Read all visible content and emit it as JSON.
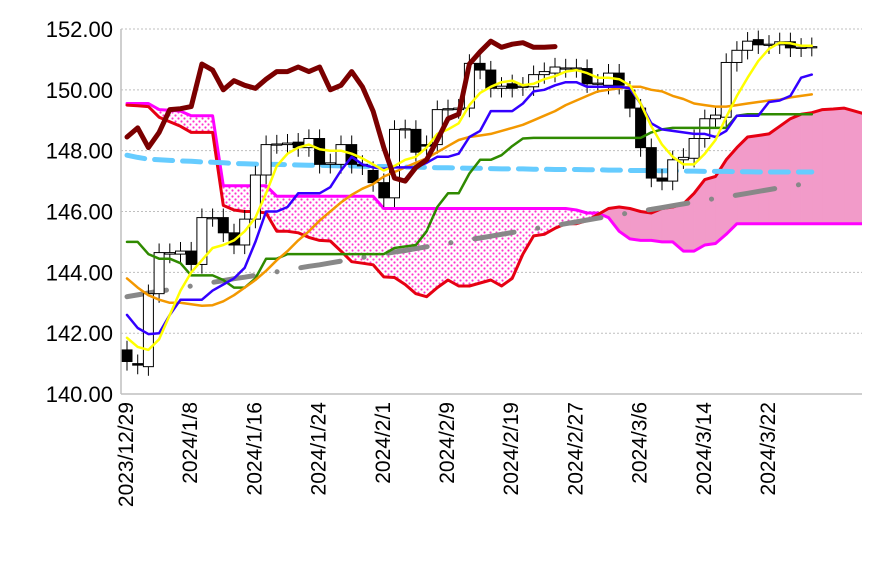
{
  "chart_data": {
    "type": "line",
    "subtype": "ichimoku-candlestick",
    "title": "",
    "xlabel": "",
    "ylabel": "",
    "ylim": [
      140,
      152
    ],
    "yticks": [
      "152.00",
      "150.00",
      "148.00",
      "146.00",
      "144.00",
      "142.00",
      "140.00"
    ],
    "ytick_values": [
      152,
      150,
      148,
      146,
      144,
      142,
      140
    ],
    "xticks": [
      {
        "label": "2023/12/29",
        "index": 0
      },
      {
        "label": "2024/1/8",
        "index": 6
      },
      {
        "label": "2024/1/16",
        "index": 12
      },
      {
        "label": "2024/1/24",
        "index": 18
      },
      {
        "label": "2024/2/1",
        "index": 24
      },
      {
        "label": "2024/2/9",
        "index": 30
      },
      {
        "label": "2024/2/19",
        "index": 36
      },
      {
        "label": "2024/2/27",
        "index": 42
      },
      {
        "label": "2024/3/6",
        "index": 48
      },
      {
        "label": "2024/3/14",
        "index": 54
      },
      {
        "label": "2024/3/22",
        "index": 60
      }
    ],
    "x_range": [
      -0.5,
      68.7
    ],
    "grid": true,
    "candles": {
      "open": [
        141.45,
        141.0,
        140.9,
        143.3,
        144.6,
        144.6,
        144.7,
        144.26,
        145.8,
        145.8,
        145.3,
        144.9,
        145.75,
        147.2,
        148.2,
        148.2,
        148.28,
        148.1,
        148.4,
        147.55,
        147.55,
        148.2,
        147.55,
        147.35,
        146.95,
        146.45,
        148.7,
        148.7,
        148.2,
        148.2,
        149.35,
        149.35,
        149.4,
        150.87,
        150.65,
        150.05,
        150.2,
        150.1,
        150.1,
        150.5,
        150.55,
        150.7,
        150.7,
        150.7,
        150.2,
        150.15,
        150.55,
        149.99,
        149.4,
        148.1,
        147.1,
        147.0,
        147.7,
        147.75,
        148.4,
        149.05,
        149.1,
        150.9,
        151.3,
        151.65,
        151.48,
        151.48,
        151.58,
        151.38,
        151.4
      ],
      "close": [
        141.07,
        140.95,
        143.3,
        144.65,
        144.65,
        144.7,
        144.26,
        145.8,
        145.8,
        145.3,
        144.9,
        145.75,
        147.2,
        148.2,
        148.22,
        148.25,
        148.1,
        148.4,
        147.55,
        147.6,
        148.2,
        147.55,
        147.5,
        146.95,
        146.45,
        148.7,
        148.72,
        147.95,
        148.15,
        149.35,
        149.38,
        149.4,
        150.87,
        150.65,
        150.05,
        150.12,
        150.05,
        150.12,
        150.5,
        150.6,
        150.75,
        150.72,
        150.72,
        150.2,
        150.22,
        150.55,
        150.15,
        149.4,
        148.1,
        147.1,
        147.0,
        147.7,
        147.78,
        148.4,
        149.05,
        149.17,
        150.9,
        151.3,
        151.6,
        151.48,
        151.5,
        151.58,
        151.38,
        151.4,
        151.42
      ],
      "wick_extension": 0.3,
      "up_color": "#ffffff",
      "down_color": "#000000"
    },
    "series": [
      {
        "name": "senkou-span-b",
        "color": "#ff00ff",
        "width": 3,
        "values": [
          149.55,
          149.55,
          149.55,
          149.35,
          149.33,
          149.3,
          149.15,
          149.15,
          149.15,
          146.85,
          146.85,
          146.85,
          146.85,
          146.85,
          146.5,
          146.5,
          146.5,
          146.5,
          146.5,
          146.5,
          146.5,
          146.5,
          146.5,
          146.5,
          146.1,
          146.1,
          146.1,
          146.1,
          146.1,
          146.1,
          146.1,
          146.1,
          146.1,
          146.1,
          146.1,
          146.1,
          146.1,
          146.1,
          146.1,
          146.1,
          146.1,
          146.1,
          146.05,
          145.95,
          145.95,
          145.8,
          145.35,
          145.1,
          145.05,
          145.05,
          145.0,
          145.0,
          144.7,
          144.7,
          144.9,
          144.95,
          145.25,
          145.6,
          145.6,
          145.6,
          145.6,
          145.6,
          145.6,
          145.6,
          145.6,
          145.6,
          145.6,
          145.6,
          145.6,
          145.6
        ]
      },
      {
        "name": "senkou-span-a",
        "color": "#e60012",
        "width": 3,
        "values": [
          149.5,
          149.48,
          149.45,
          149.1,
          148.95,
          148.8,
          148.6,
          148.6,
          148.6,
          146.2,
          146.05,
          146.0,
          146.0,
          145.95,
          145.35,
          145.35,
          145.3,
          145.15,
          145.05,
          145.03,
          144.7,
          144.35,
          144.3,
          144.25,
          143.85,
          143.83,
          143.6,
          143.3,
          143.2,
          143.5,
          143.75,
          143.55,
          143.55,
          143.65,
          143.75,
          143.55,
          143.8,
          144.6,
          145.2,
          145.25,
          145.45,
          145.6,
          145.6,
          145.7,
          145.9,
          146.1,
          146.15,
          146.1,
          146.0,
          145.95,
          146.1,
          146.15,
          146.25,
          146.6,
          147.05,
          147.15,
          147.7,
          148.1,
          148.45,
          148.5,
          148.55,
          148.8,
          149.05,
          149.2,
          149.25,
          149.35,
          149.37,
          149.4,
          149.3,
          149.2
        ]
      },
      {
        "name": "long-ma-lightblue",
        "color": "#66ccff",
        "width": 5,
        "dash": "dashed",
        "values": [
          147.85,
          147.78,
          147.72,
          147.7,
          147.68,
          147.66,
          147.65,
          147.63,
          147.62,
          147.6,
          147.58,
          147.57,
          147.56,
          147.55,
          147.55,
          147.54,
          147.53,
          147.52,
          147.52,
          147.51,
          147.5,
          147.5,
          147.49,
          147.48,
          147.48,
          147.47,
          147.46,
          147.46,
          147.45,
          147.44,
          147.44,
          147.43,
          147.42,
          147.42,
          147.41,
          147.4,
          147.4,
          147.4,
          147.39,
          147.39,
          147.38,
          147.38,
          147.38,
          147.37,
          147.37,
          147.36,
          147.36,
          147.35,
          147.35,
          147.35,
          147.34,
          147.34,
          147.33,
          147.33,
          147.32,
          147.32,
          147.32,
          147.31,
          147.31,
          147.3,
          147.3,
          147.3,
          147.3,
          147.3,
          147.3
        ]
      },
      {
        "name": "ma-gray",
        "color": "#888888",
        "width": 5,
        "dash": "dash-dot",
        "values": [
          143.2,
          143.26,
          143.32,
          143.38,
          143.43,
          143.49,
          143.55,
          143.61,
          143.67,
          143.73,
          143.79,
          143.84,
          143.9,
          143.96,
          144.02,
          144.08,
          144.14,
          144.2,
          144.25,
          144.31,
          144.37,
          144.43,
          144.49,
          144.55,
          144.61,
          144.67,
          144.72,
          144.78,
          144.84,
          144.9,
          144.96,
          145.02,
          145.08,
          145.13,
          145.19,
          145.25,
          145.31,
          145.37,
          145.43,
          145.49,
          145.54,
          145.6,
          145.66,
          145.72,
          145.78,
          145.84,
          145.9,
          145.96,
          146.02,
          146.07,
          146.13,
          146.19,
          146.25,
          146.31,
          146.37,
          146.43,
          146.48,
          146.54,
          146.6,
          146.66,
          146.72,
          146.78,
          146.84,
          146.89,
          146.95
        ]
      },
      {
        "name": "kijun-sen",
        "color": "#2f8a00",
        "width": 2.5,
        "values": [
          145.0,
          145.0,
          144.6,
          144.45,
          144.45,
          144.3,
          143.9,
          143.9,
          143.9,
          143.75,
          143.5,
          143.5,
          143.8,
          144.45,
          144.45,
          144.6,
          144.6,
          144.6,
          144.6,
          144.6,
          144.6,
          144.6,
          144.6,
          144.6,
          144.6,
          144.8,
          144.85,
          144.9,
          145.35,
          146.15,
          146.6,
          146.6,
          147.25,
          147.7,
          147.7,
          147.85,
          148.15,
          148.4,
          148.42,
          148.42,
          148.42,
          148.42,
          148.42,
          148.42,
          148.42,
          148.42,
          148.42,
          148.42,
          148.42,
          148.6,
          148.7,
          148.75,
          148.75,
          148.75,
          148.75,
          148.75,
          148.75,
          149.15,
          149.2,
          149.2,
          149.2,
          149.2,
          149.2,
          149.2,
          149.2
        ]
      },
      {
        "name": "ma-orange",
        "color": "#f39800",
        "width": 2.5,
        "values": [
          143.8,
          143.5,
          143.25,
          143.1,
          143.0,
          143.0,
          142.95,
          142.9,
          142.92,
          143.05,
          143.25,
          143.5,
          143.75,
          144.05,
          144.4,
          144.7,
          145.05,
          145.35,
          145.7,
          146.0,
          146.3,
          146.55,
          146.75,
          146.9,
          147.15,
          147.3,
          147.45,
          147.6,
          147.75,
          147.95,
          148.15,
          148.35,
          148.45,
          148.5,
          148.55,
          148.65,
          148.75,
          148.85,
          149.0,
          149.15,
          149.3,
          149.5,
          149.65,
          149.8,
          149.95,
          150.0,
          150.05,
          150.1,
          150.1,
          150.0,
          149.95,
          149.8,
          149.7,
          149.55,
          149.5,
          149.45,
          149.45,
          149.5,
          149.55,
          149.6,
          149.65,
          149.68,
          149.75,
          149.8,
          149.85
        ]
      },
      {
        "name": "tenkan-sen",
        "color": "#3300ff",
        "width": 2.5,
        "values": [
          142.6,
          142.17,
          141.97,
          142.0,
          142.6,
          143.1,
          143.1,
          143.1,
          143.4,
          143.6,
          143.8,
          144.15,
          145.0,
          146.0,
          146.0,
          146.15,
          146.6,
          146.6,
          146.6,
          146.8,
          147.35,
          147.8,
          147.55,
          147.45,
          147.4,
          147.45,
          147.45,
          147.45,
          147.6,
          147.8,
          147.8,
          147.9,
          148.45,
          148.65,
          149.3,
          149.3,
          149.3,
          149.55,
          149.95,
          150.0,
          150.15,
          150.25,
          150.25,
          150.1,
          150.1,
          150.1,
          150.1,
          150.05,
          149.55,
          148.9,
          148.7,
          148.65,
          148.6,
          148.55,
          148.55,
          148.45,
          148.65,
          149.15,
          149.15,
          149.15,
          149.6,
          149.65,
          149.8,
          150.4,
          150.5
        ]
      },
      {
        "name": "ma-yellow",
        "color": "#ffff00",
        "width": 2.5,
        "values": [
          141.85,
          141.55,
          141.45,
          141.8,
          142.6,
          143.4,
          144.0,
          144.4,
          144.8,
          144.9,
          145.05,
          145.35,
          145.8,
          146.6,
          147.5,
          147.9,
          148.1,
          148.2,
          148.05,
          148.0,
          148.0,
          147.9,
          147.75,
          147.55,
          147.35,
          147.5,
          147.7,
          147.8,
          148.1,
          148.55,
          148.7,
          148.9,
          149.5,
          149.9,
          150.1,
          150.25,
          150.3,
          150.15,
          150.2,
          150.35,
          150.45,
          150.6,
          150.65,
          150.55,
          150.4,
          150.4,
          150.35,
          150.15,
          149.55,
          148.8,
          148.2,
          147.8,
          147.55,
          147.55,
          147.9,
          148.35,
          149.1,
          149.8,
          150.4,
          150.95,
          151.35,
          151.55,
          151.53,
          151.45,
          151.45
        ]
      },
      {
        "name": "chikou-span",
        "color": "#7b0000",
        "width": 5,
        "values": [
          148.45,
          148.75,
          148.1,
          148.6,
          149.35,
          149.38,
          149.45,
          150.85,
          150.65,
          150.0,
          150.3,
          150.15,
          150.05,
          150.35,
          150.6,
          150.6,
          150.75,
          150.6,
          150.75,
          150.0,
          150.15,
          150.6,
          150.1,
          149.3,
          148.1,
          147.1,
          147.0,
          147.45,
          147.7,
          148.35,
          149.05,
          149.2,
          150.85,
          151.25,
          151.6,
          151.4,
          151.5,
          151.55,
          151.4,
          151.4,
          151.42
        ]
      }
    ],
    "cloud": {
      "bullish_fill": "#f29bc9",
      "bearish_fill_pattern": "magenta-dots",
      "bearish_dot_color": "#ff33cc"
    }
  }
}
